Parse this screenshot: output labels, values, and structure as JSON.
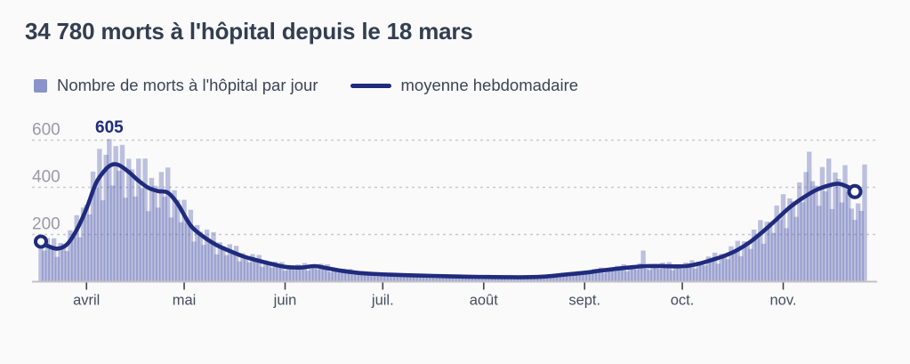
{
  "header": {
    "title": "34 780 morts à l'hôpital depuis le 18 mars"
  },
  "legend": {
    "bars_label": "Nombre de morts à l'hôpital par jour",
    "line_label": "moyenne hebdomadaire"
  },
  "colors": {
    "background": "#fafafb",
    "title_text": "#333e50",
    "legend_text": "#3c4557",
    "bar_base": "#5e6ab5",
    "bar_opacity": 0.4,
    "legend_bar_swatch": "#8b93cb",
    "line": "#1f2b7d",
    "grid": "#c9c9cb",
    "y_label": "#9b9ba0",
    "x_label": "#454d5e",
    "axis": "#c2c2c6",
    "tick": "#3c4250",
    "marker_fill": "#ffffff"
  },
  "chart_data": {
    "type": "bar",
    "title": "34 780 morts à l'hôpital depuis le 18 mars",
    "legend_position": "top",
    "y_axis": {
      "ticks": [
        200,
        400,
        600
      ],
      "range": [
        0,
        650
      ],
      "gridlines": "dashed"
    },
    "x_axis": {
      "unit": "jour (depuis le 18 mars)",
      "months": [
        {
          "label": "avril",
          "day_index": 14
        },
        {
          "label": "mai",
          "day_index": 44
        },
        {
          "label": "juin",
          "day_index": 75
        },
        {
          "label": "juil.",
          "day_index": 105
        },
        {
          "label": "août",
          "day_index": 136
        },
        {
          "label": "sept.",
          "day_index": 167
        },
        {
          "label": "oct.",
          "day_index": 197
        },
        {
          "label": "nov.",
          "day_index": 228
        }
      ]
    },
    "annotation": {
      "text": "605",
      "day_index": 21,
      "value": 605
    },
    "bars": {
      "name": "Nombre de morts à l'hôpital par jour",
      "values": [
        179,
        132,
        185,
        141,
        184,
        105,
        164,
        160,
        130,
        218,
        189,
        282,
        188,
        314,
        326,
        285,
        467,
        399,
        563,
        345,
        538,
        605,
        408,
        575,
        470,
        580,
        356,
        521,
        476,
        361,
        522,
        397,
        522,
        299,
        440,
        407,
        314,
        465,
        361,
        484,
        272,
        388,
        347,
        252,
        347,
        248,
        305,
        170,
        240,
        212,
        156,
        221,
        163,
        210,
        116,
        167,
        150,
        112,
        159,
        119,
        152,
        86,
        121,
        109,
        82,
        117,
        87,
        113,
        63,
        90,
        80,
        60,
        85,
        65,
        83,
        47,
        69,
        64,
        50,
        73,
        57,
        79,
        47,
        73,
        69,
        52,
        76,
        57,
        74,
        41,
        58,
        53,
        39,
        55,
        41,
        54,
        30,
        43,
        39,
        30,
        41,
        31,
        41,
        24,
        35,
        33,
        25,
        37,
        28,
        37,
        21,
        31,
        28,
        22,
        33,
        25,
        33,
        19,
        28,
        26,
        21,
        29,
        23,
        31,
        17,
        26,
        24,
        18,
        27,
        21,
        27,
        16,
        24,
        22,
        16,
        24,
        19,
        26,
        15,
        21,
        20,
        16,
        23,
        18,
        24,
        14,
        21,
        20,
        16,
        23,
        19,
        26,
        16,
        24,
        23,
        18,
        28,
        24,
        33,
        20,
        32,
        32,
        25,
        40,
        32,
        45,
        28,
        43,
        42,
        34,
        54,
        43,
        60,
        37,
        56,
        55,
        44,
        67,
        53,
        74,
        44,
        68,
        65,
        52,
        78,
        132,
        55,
        50,
        74,
        69,
        54,
        81,
        62,
        83,
        49,
        73,
        69,
        54,
        81,
        66,
        91,
        56,
        85,
        84,
        69,
        107,
        87,
        123,
        76,
        118,
        116,
        95,
        150,
        123,
        173,
        108,
        171,
        169,
        139,
        221,
        182,
        261,
        161,
        254,
        252,
        207,
        323,
        263,
        371,
        227,
        353,
        341,
        275,
        421,
        337,
        465,
        551,
        426,
        407,
        322,
        486,
        383,
        522,
        308,
        463,
        436,
        336,
        494,
        380,
        310,
        262,
        332,
        300,
        497
      ]
    },
    "line": {
      "name": "moyenne hebdomadaire",
      "endpoint_markers": true,
      "points": [
        [
          0,
          170
        ],
        [
          2,
          152
        ],
        [
          5,
          140
        ],
        [
          8,
          158
        ],
        [
          11,
          220
        ],
        [
          14,
          310
        ],
        [
          17,
          420
        ],
        [
          20,
          478
        ],
        [
          22,
          497
        ],
        [
          24,
          494
        ],
        [
          27,
          465
        ],
        [
          30,
          428
        ],
        [
          33,
          398
        ],
        [
          36,
          384
        ],
        [
          39,
          377
        ],
        [
          42,
          330
        ],
        [
          46,
          238
        ],
        [
          50,
          190
        ],
        [
          54,
          155
        ],
        [
          58,
          130
        ],
        [
          62,
          108
        ],
        [
          66,
          92
        ],
        [
          70,
          78
        ],
        [
          75,
          63
        ],
        [
          80,
          60
        ],
        [
          84,
          66
        ],
        [
          88,
          57
        ],
        [
          92,
          47
        ],
        [
          97,
          38
        ],
        [
          102,
          33
        ],
        [
          107,
          30
        ],
        [
          113,
          27
        ],
        [
          119,
          25
        ],
        [
          125,
          23
        ],
        [
          131,
          21
        ],
        [
          137,
          20
        ],
        [
          143,
          19
        ],
        [
          149,
          19
        ],
        [
          155,
          22
        ],
        [
          161,
          30
        ],
        [
          167,
          38
        ],
        [
          172,
          47
        ],
        [
          177,
          55
        ],
        [
          182,
          62
        ],
        [
          186,
          66
        ],
        [
          191,
          66
        ],
        [
          195,
          65
        ],
        [
          198,
          66
        ],
        [
          202,
          76
        ],
        [
          206,
          92
        ],
        [
          210,
          110
        ],
        [
          214,
          135
        ],
        [
          218,
          170
        ],
        [
          222,
          215
        ],
        [
          226,
          265
        ],
        [
          230,
          315
        ],
        [
          234,
          355
        ],
        [
          238,
          388
        ],
        [
          242,
          408
        ],
        [
          245,
          415
        ],
        [
          248,
          401
        ],
        [
          250,
          382
        ]
      ]
    }
  }
}
